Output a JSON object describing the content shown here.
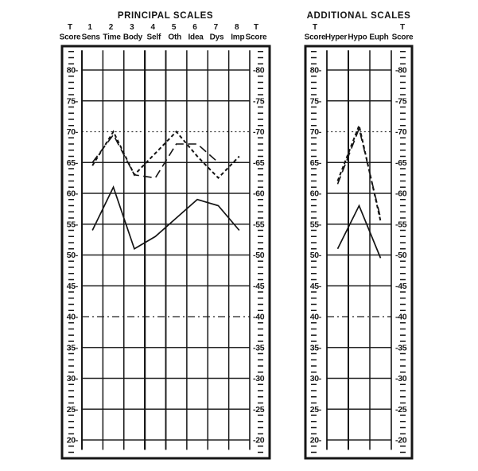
{
  "page": {
    "paper_color": "#ffffff",
    "ink_color": "#161616"
  },
  "left_panel": {
    "title": "PRINCIPAL SCALES",
    "t_score_label": {
      "top": "T",
      "bottom": "Score"
    },
    "columns": [
      {
        "num": "1",
        "name": "Sens"
      },
      {
        "num": "2",
        "name": "Time"
      },
      {
        "num": "3",
        "name": "Body"
      },
      {
        "num": "4",
        "name": "Self"
      },
      {
        "num": "5",
        "name": "Oth"
      },
      {
        "num": "6",
        "name": "Idea"
      },
      {
        "num": "7",
        "name": "Dys"
      },
      {
        "num": "8",
        "name": "Imp"
      }
    ]
  },
  "right_panel": {
    "title": "ADDITIONAL SCALES",
    "t_score_label": {
      "top": "T",
      "bottom": "Score"
    },
    "columns": [
      {
        "num": "",
        "name": "Hyper"
      },
      {
        "num": "",
        "name": "Hypo"
      },
      {
        "num": "",
        "name": "Euph"
      }
    ]
  },
  "chart_data": [
    {
      "type": "line",
      "title": "PRINCIPAL SCALES",
      "categories": [
        "Sens",
        "Time",
        "Body",
        "Self",
        "Oth",
        "Idea",
        "Dys",
        "Imp"
      ],
      "category_numbers": [
        "1",
        "2",
        "3",
        "4",
        "5",
        "6",
        "7",
        "8"
      ],
      "ylabel": "T Score",
      "ylim": [
        18,
        84
      ],
      "yticks": [
        80,
        75,
        70,
        65,
        60,
        55,
        50,
        45,
        40,
        35,
        30,
        25,
        20
      ],
      "grid": true,
      "legend": "none",
      "series": [
        {
          "name": "solid-profile",
          "style": "solid",
          "values": [
            54,
            61,
            51,
            53,
            56,
            59,
            58,
            54
          ]
        },
        {
          "name": "short-dash-profile",
          "style": "short-dash",
          "values": [
            64.5,
            70,
            63,
            66.5,
            70,
            66,
            62.5,
            66
          ]
        },
        {
          "name": "long-dash-profile",
          "style": "long-dash",
          "values": [
            65,
            69.5,
            63,
            62.5,
            68,
            68,
            65,
            65
          ]
        }
      ]
    },
    {
      "type": "line",
      "title": "ADDITIONAL SCALES",
      "categories": [
        "Hyper",
        "Hypo",
        "Euph"
      ],
      "category_numbers": [
        "",
        "",
        ""
      ],
      "ylabel": "T Score",
      "ylim": [
        18,
        84
      ],
      "yticks": [
        80,
        75,
        70,
        65,
        60,
        55,
        50,
        45,
        40,
        35,
        30,
        25,
        20
      ],
      "grid": true,
      "legend": "none",
      "series": [
        {
          "name": "solid-profile",
          "style": "solid",
          "values": [
            51,
            58,
            49.5
          ]
        },
        {
          "name": "short-dash-profile",
          "style": "short-dash",
          "values": [
            62,
            71,
            55.5
          ]
        },
        {
          "name": "long-dash-profile",
          "style": "long-dash",
          "values": [
            61.5,
            70.5,
            56
          ]
        }
      ]
    }
  ]
}
